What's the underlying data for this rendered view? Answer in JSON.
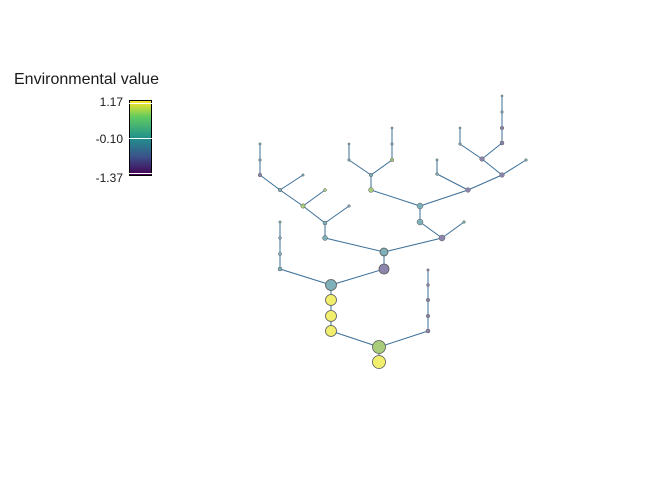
{
  "legend": {
    "title": "Environmental value",
    "max_label": "1.17",
    "mid_label": "-0.10",
    "min_label": "-1.37"
  },
  "colors": {
    "edge": "#3a6e98",
    "node_stroke": "#5a5a5a",
    "yellow": "#f2ee6e",
    "teal": "#7db0b8",
    "purple": "#8c86ad",
    "light_green": "#a9cc7a"
  }
}
